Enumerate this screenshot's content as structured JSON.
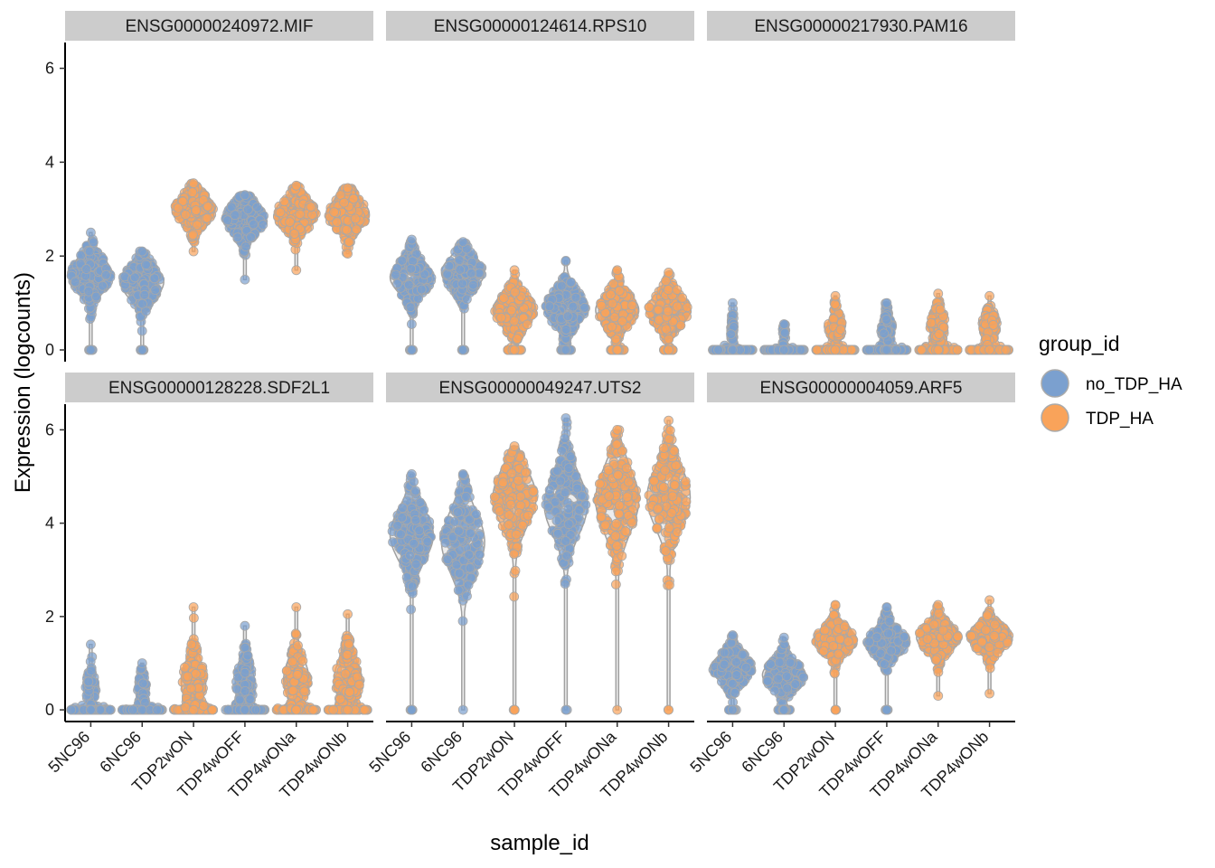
{
  "chart_data": {
    "type": "violin",
    "xlabel": "sample_id",
    "ylabel": "Expression (logcounts)",
    "ylim": [
      -0.25,
      6.55
    ],
    "yticks": [
      0,
      2,
      4,
      6
    ],
    "yticks_labels": [
      "0",
      "2",
      "4",
      "6"
    ],
    "categories": [
      "5NC96",
      "6NC96",
      "TDP2wON",
      "TDP4wOFF",
      "TDP4wONa",
      "TDP4wONb"
    ],
    "category_groups": [
      "no_TDP_HA",
      "no_TDP_HA",
      "TDP_HA",
      "no_TDP_HA",
      "TDP_HA",
      "TDP_HA"
    ],
    "legend": {
      "title": "group_id",
      "entries": [
        {
          "label": "no_TDP_HA",
          "color": "#7BA0CF"
        },
        {
          "label": "TDP_HA",
          "color": "#F9A35A"
        }
      ]
    },
    "panels": [
      {
        "title": "ENSG00000240972.MIF",
        "violins": [
          {
            "median": 1.6,
            "spread": 0.35,
            "min": 0.0,
            "max": 2.5,
            "zero": 0.04
          },
          {
            "median": 1.45,
            "spread": 0.35,
            "min": 0.0,
            "max": 2.1,
            "zero": 0.04
          },
          {
            "median": 3.0,
            "spread": 0.28,
            "min": 2.1,
            "max": 3.55,
            "zero": 0
          },
          {
            "median": 2.8,
            "spread": 0.3,
            "min": 1.5,
            "max": 3.3,
            "zero": 0
          },
          {
            "median": 2.9,
            "spread": 0.3,
            "min": 1.7,
            "max": 3.5,
            "zero": 0
          },
          {
            "median": 2.9,
            "spread": 0.3,
            "min": 2.05,
            "max": 3.45,
            "zero": 0
          }
        ]
      },
      {
        "title": "ENSG00000124614.RPS10",
        "violins": [
          {
            "median": 1.55,
            "spread": 0.33,
            "min": 0.0,
            "max": 2.35,
            "zero": 0.04
          },
          {
            "median": 1.65,
            "spread": 0.32,
            "min": 0.0,
            "max": 2.3,
            "zero": 0.04
          },
          {
            "median": 0.85,
            "spread": 0.33,
            "min": 0.0,
            "max": 1.7,
            "zero": 0.12
          },
          {
            "median": 0.9,
            "spread": 0.35,
            "min": 0.0,
            "max": 1.9,
            "zero": 0.1
          },
          {
            "median": 0.85,
            "spread": 0.33,
            "min": 0.0,
            "max": 1.7,
            "zero": 0.12
          },
          {
            "median": 0.85,
            "spread": 0.33,
            "min": 0.0,
            "max": 1.65,
            "zero": 0.1
          }
        ]
      },
      {
        "title": "ENSG00000217930.PAM16",
        "violins": [
          {
            "median": 0.4,
            "spread": 0.2,
            "min": 0.0,
            "max": 1.0,
            "zero": 0.82
          },
          {
            "median": 0.35,
            "spread": 0.15,
            "min": 0.0,
            "max": 0.55,
            "zero": 0.85
          },
          {
            "median": 0.5,
            "spread": 0.25,
            "min": 0.0,
            "max": 1.15,
            "zero": 0.55
          },
          {
            "median": 0.45,
            "spread": 0.25,
            "min": 0.0,
            "max": 1.0,
            "zero": 0.6
          },
          {
            "median": 0.5,
            "spread": 0.28,
            "min": 0.0,
            "max": 1.2,
            "zero": 0.5
          },
          {
            "median": 0.5,
            "spread": 0.28,
            "min": 0.0,
            "max": 1.15,
            "zero": 0.52
          }
        ]
      },
      {
        "title": "ENSG00000128228.SDF2L1",
        "violins": [
          {
            "median": 0.45,
            "spread": 0.3,
            "min": 0.0,
            "max": 1.4,
            "zero": 0.62
          },
          {
            "median": 0.45,
            "spread": 0.25,
            "min": 0.0,
            "max": 1.0,
            "zero": 0.66
          },
          {
            "median": 0.6,
            "spread": 0.45,
            "min": 0.0,
            "max": 2.2,
            "zero": 0.38
          },
          {
            "median": 0.55,
            "spread": 0.42,
            "min": 0.0,
            "max": 1.8,
            "zero": 0.45
          },
          {
            "median": 0.65,
            "spread": 0.45,
            "min": 0.0,
            "max": 2.2,
            "zero": 0.38
          },
          {
            "median": 0.65,
            "spread": 0.45,
            "min": 0.0,
            "max": 2.05,
            "zero": 0.36
          }
        ]
      },
      {
        "title": "ENSG00000049247.UTS2",
        "violins": [
          {
            "median": 3.75,
            "spread": 0.55,
            "min": 0.0,
            "max": 5.05,
            "zero": 0.02
          },
          {
            "median": 3.6,
            "spread": 0.65,
            "min": 0.0,
            "max": 5.05,
            "zero": 0.01
          },
          {
            "median": 4.55,
            "spread": 0.6,
            "min": 0.0,
            "max": 5.65,
            "zero": 0.01
          },
          {
            "median": 4.4,
            "spread": 0.65,
            "min": 0.0,
            "max": 6.25,
            "zero": 0.01
          },
          {
            "median": 4.5,
            "spread": 0.7,
            "min": 0.0,
            "max": 6.0,
            "zero": 0.01
          },
          {
            "median": 4.55,
            "spread": 0.65,
            "min": 0.0,
            "max": 6.2,
            "zero": 0.01
          }
        ]
      },
      {
        "title": "ENSG00000004059.ARF5",
        "violins": [
          {
            "median": 0.9,
            "spread": 0.28,
            "min": 0.0,
            "max": 1.6,
            "zero": 0.08
          },
          {
            "median": 0.75,
            "spread": 0.28,
            "min": 0.0,
            "max": 1.55,
            "zero": 0.12
          },
          {
            "median": 1.5,
            "spread": 0.25,
            "min": 0.0,
            "max": 2.25,
            "zero": 0.01
          },
          {
            "median": 1.45,
            "spread": 0.28,
            "min": 0.0,
            "max": 2.2,
            "zero": 0.02
          },
          {
            "median": 1.55,
            "spread": 0.27,
            "min": 0.3,
            "max": 2.25,
            "zero": 0
          },
          {
            "median": 1.55,
            "spread": 0.25,
            "min": 0.35,
            "max": 2.35,
            "zero": 0
          }
        ]
      }
    ]
  }
}
